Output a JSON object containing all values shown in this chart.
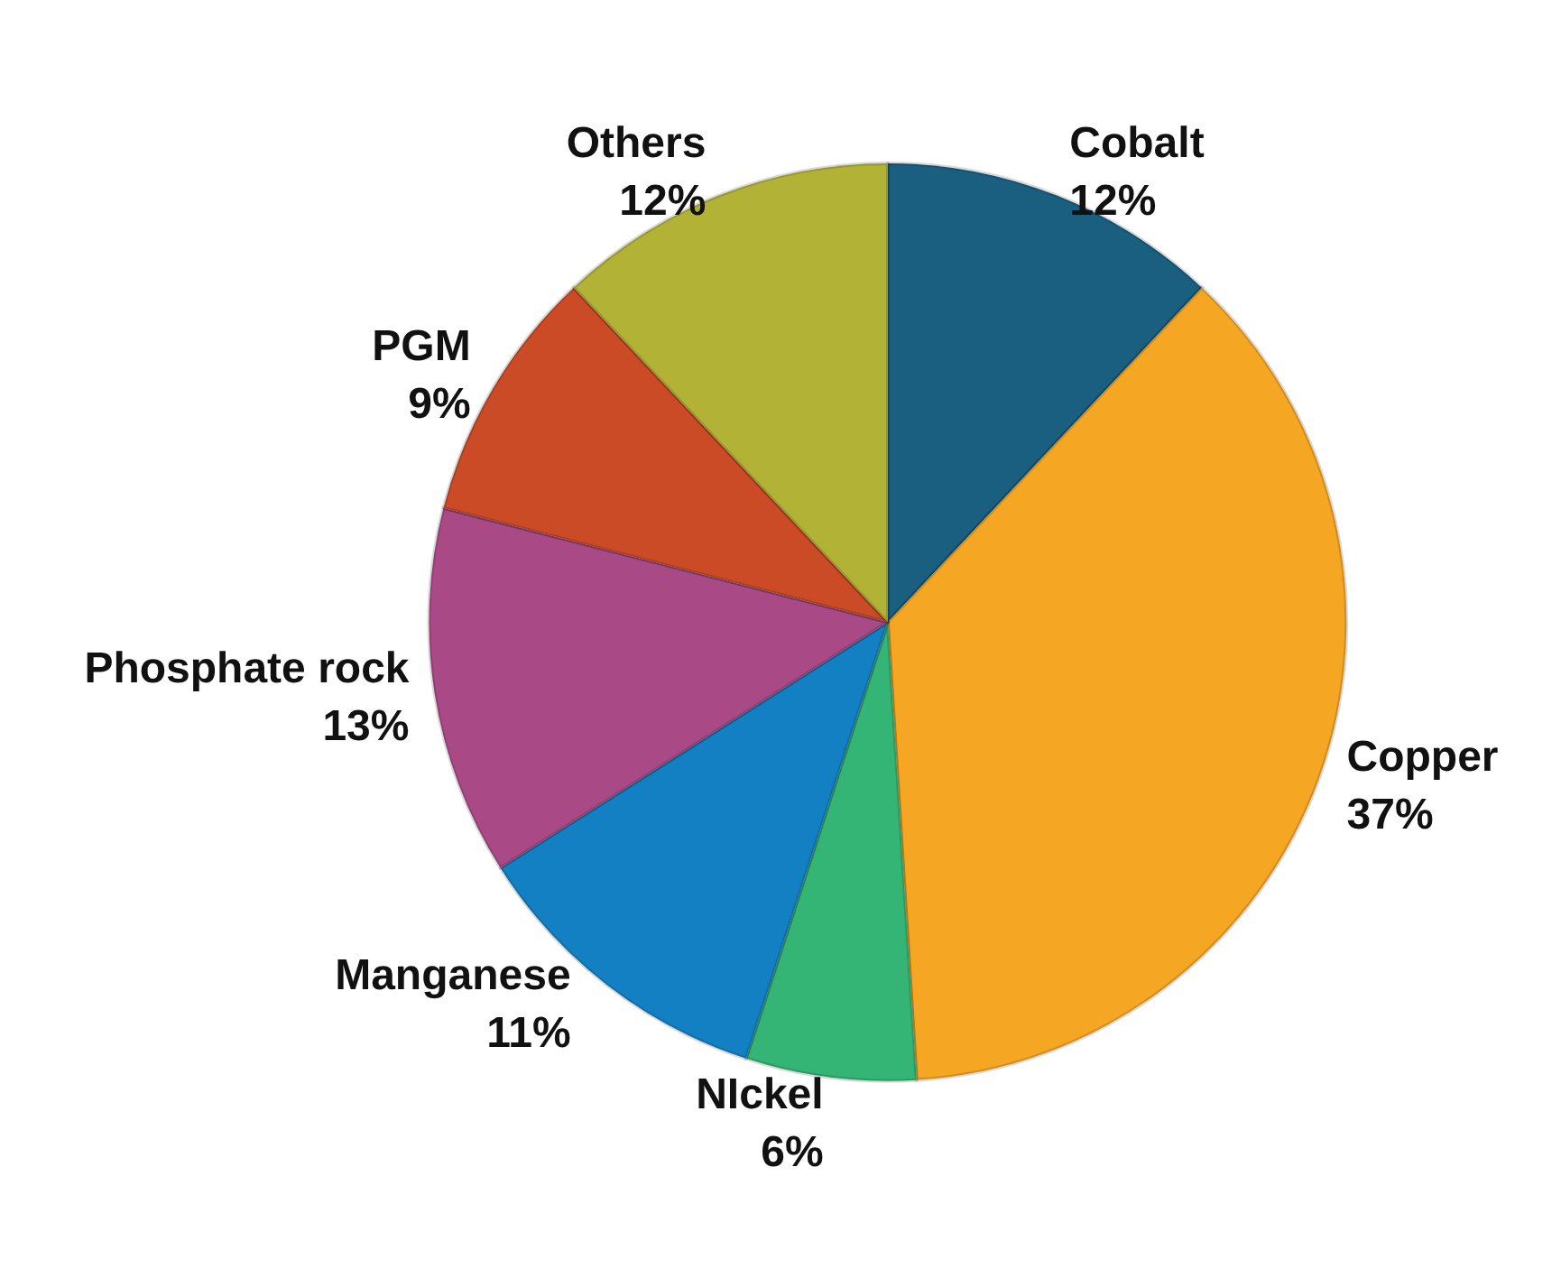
{
  "chart_data": {
    "type": "pie",
    "categories": [
      "Cobalt",
      "Copper",
      "NIckel",
      "Manganese",
      "Phosphate rock",
      "PGM",
      "Others"
    ],
    "values": [
      12,
      37,
      6,
      11,
      13,
      9,
      12
    ],
    "value_labels": [
      "12%",
      "37%",
      "6%",
      "11%",
      "13%",
      "9%",
      "12%"
    ],
    "colors": [
      "#1a5f80",
      "#f5a623",
      "#34b575",
      "#1380c4",
      "#a94a87",
      "#cb4b27",
      "#b2b336"
    ],
    "legend": false
  }
}
